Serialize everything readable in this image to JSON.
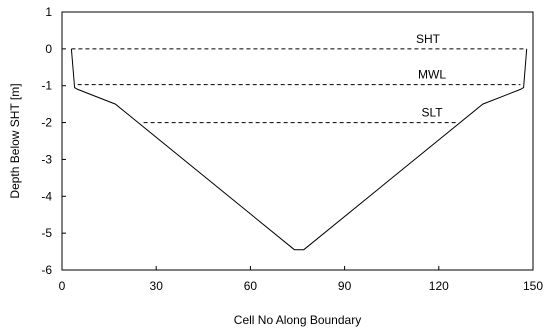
{
  "chart_data": {
    "type": "line",
    "title": "",
    "xlabel": "Cell No Along Boundary",
    "ylabel": "Depth Below SHT [m]",
    "xlim": [
      0,
      150
    ],
    "ylim": [
      -6,
      1
    ],
    "x_ticks": [
      0,
      30,
      60,
      90,
      120,
      150
    ],
    "x_tick_labels": [
      "0",
      "30",
      "60",
      "90",
      "120",
      "150"
    ],
    "y_ticks": [
      1,
      0,
      -1,
      -2,
      -3,
      -4,
      -5,
      -6
    ],
    "y_tick_labels": [
      "1",
      "0",
      "-1",
      "-2",
      "-3",
      "-4",
      "-5",
      "-6"
    ],
    "grid": false,
    "legend": "none",
    "series": [
      {
        "style": "solid",
        "color": "#000000",
        "x": [
          3,
          4,
          5,
          17,
          74,
          77,
          134,
          146,
          147,
          148
        ],
        "y": [
          0,
          -1.05,
          -1.1,
          -1.5,
          -5.45,
          -5.45,
          -1.5,
          -1.1,
          -1.05,
          0
        ]
      }
    ],
    "reference_lines": [
      {
        "label": "SHT",
        "y": 0,
        "x_start": 3,
        "x_end": 148,
        "style": "dashed"
      },
      {
        "label": "MWL",
        "y": -0.97,
        "x_start": 5,
        "x_end": 146,
        "style": "dashed"
      },
      {
        "label": "SLT",
        "y": -2,
        "x_start": 26,
        "x_end": 126,
        "style": "dashed"
      }
    ],
    "annotations": [
      "SHT",
      "MWL",
      "SLT"
    ]
  }
}
